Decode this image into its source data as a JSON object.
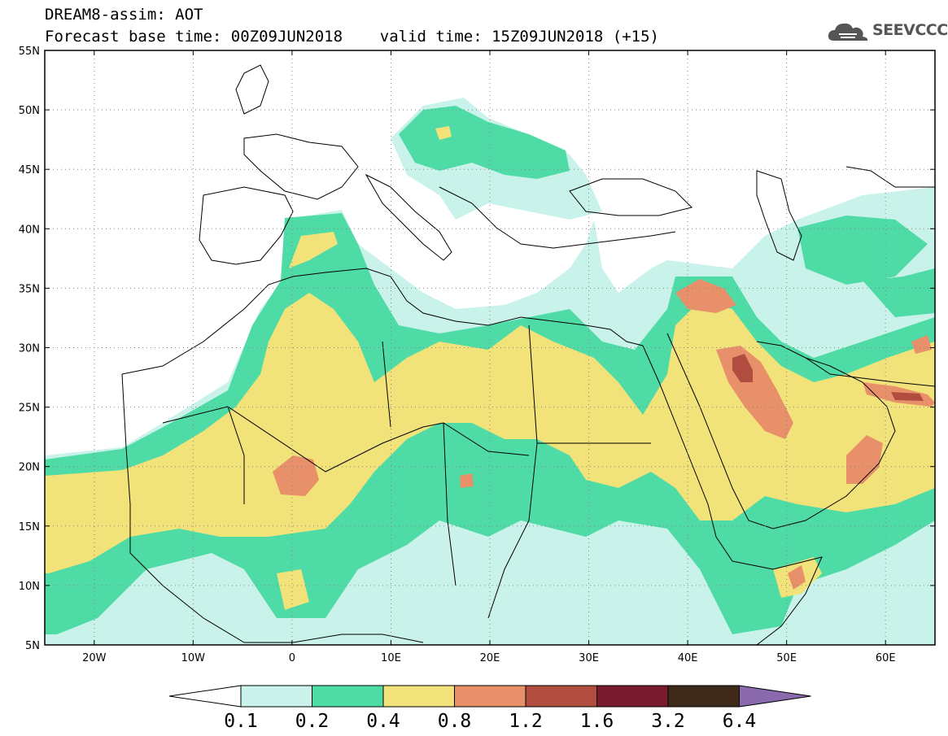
{
  "header": {
    "line1": "DREAM8-assim: AOT",
    "line2": "Forecast base time: 00Z09JUN2018    valid time: 15Z09JUN2018 (+15)"
  },
  "logo": {
    "text": "SEEVCCC",
    "icon": "cloud-icon"
  },
  "map": {
    "lon_range": [
      -25,
      65
    ],
    "lat_range": [
      5,
      55
    ],
    "lat_labels": [
      "55N",
      "50N",
      "45N",
      "40N",
      "35N",
      "30N",
      "25N",
      "20N",
      "15N",
      "10N",
      "5N"
    ],
    "lon_labels": [
      "20W",
      "10W",
      "0",
      "10E",
      "20E",
      "30E",
      "40E",
      "50E",
      "60E"
    ]
  },
  "legend": {
    "levels": [
      "0.1",
      "0.2",
      "0.4",
      "0.8",
      "1.2",
      "1.6",
      "3.2",
      "6.4"
    ],
    "colors": [
      "#c9f2ea",
      "#4fdba6",
      "#f2e27a",
      "#e8906a",
      "#b04d3f",
      "#7a1a2f",
      "#3f2a1a",
      "#8a6aad"
    ],
    "lower_color": "#ffffff"
  }
}
